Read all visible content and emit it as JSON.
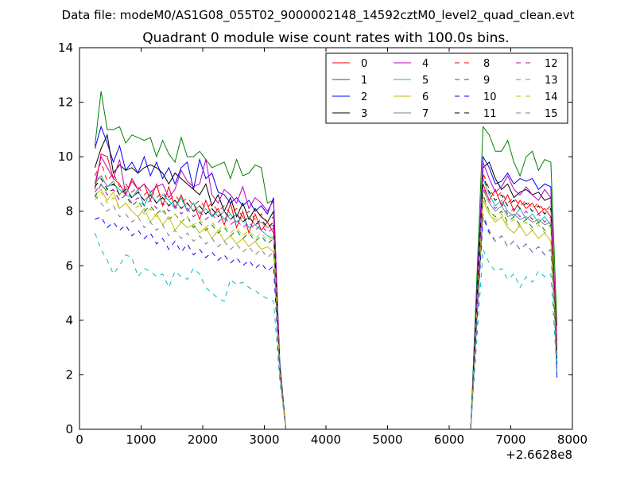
{
  "suptitle": "Data file: modeM0/AS1G08_055T02_9000002148_14592cztM0_level2_quad_clean.evt",
  "chart_data": {
    "type": "line",
    "title": "Quadrant 0 module wise count rates with 100.0s bins.",
    "xlabel": "",
    "ylabel": "",
    "x_offset_label": "+2.6628e8",
    "xlim": [
      0,
      8000
    ],
    "ylim": [
      0,
      14
    ],
    "xticks": [
      0,
      1000,
      2000,
      3000,
      4000,
      5000,
      6000,
      7000,
      8000
    ],
    "yticks": [
      0,
      2,
      4,
      6,
      8,
      10,
      12,
      14
    ],
    "grid": false,
    "legend": "top-right",
    "legend_columns": 4,
    "segments": [
      {
        "x_start": 250,
        "x_step": 100,
        "count": 30
      },
      {
        "x": [
          3250,
          3350,
          3450,
          6250,
          6350
        ]
      },
      {
        "x_start": 6550,
        "x_step": 100,
        "count": 13
      }
    ],
    "series": [
      {
        "name": "0",
        "color": "#ff0000",
        "dash": "solid",
        "seg1": [
          8.8,
          10.1,
          10.0,
          9.2,
          9.0,
          8.6,
          9.2,
          8.8,
          9.0,
          8.4,
          9.0,
          8.2,
          8.9,
          8.1,
          8.6,
          8.0,
          8.3,
          7.7,
          8.4,
          7.8,
          8.1,
          7.5,
          8.3,
          7.4,
          8.0,
          7.2,
          7.9,
          7.3,
          7.6,
          7.2
        ],
        "seg2": [
          2.2,
          0,
          0,
          0,
          0
        ],
        "seg3": [
          9.0,
          8.4,
          8.8,
          8.2,
          8.6,
          8.0,
          8.4,
          8.1,
          8.3,
          7.9,
          8.1,
          7.8,
          3.0
        ]
      },
      {
        "name": "1",
        "color": "#008000",
        "dash": "solid",
        "seg1": [
          10.4,
          12.4,
          11.0,
          11.0,
          11.1,
          10.5,
          10.8,
          10.7,
          10.6,
          10.7,
          10.0,
          10.6,
          10.1,
          9.8,
          10.7,
          10.0,
          10.0,
          10.2,
          9.9,
          9.6,
          9.7,
          9.8,
          9.2,
          9.9,
          9.3,
          9.4,
          9.7,
          9.6,
          8.3,
          8.4
        ],
        "seg2": [
          2.5,
          0,
          0,
          0,
          0
        ],
        "seg3": [
          11.1,
          10.8,
          10.2,
          10.2,
          10.6,
          9.8,
          9.3,
          10.0,
          10.2,
          9.5,
          9.9,
          9.8,
          3.8
        ]
      },
      {
        "name": "2",
        "color": "#0000ff",
        "dash": "solid",
        "seg1": [
          10.3,
          11.1,
          10.5,
          9.8,
          10.4,
          9.5,
          9.8,
          9.4,
          10.0,
          9.3,
          9.8,
          9.2,
          9.6,
          9.0,
          9.6,
          9.8,
          8.8,
          9.9,
          9.2,
          9.4,
          8.7,
          8.6,
          8.3,
          8.5,
          8.2,
          8.4,
          8.0,
          8.2,
          7.9,
          8.5
        ],
        "seg2": [
          2.3,
          0,
          0,
          0,
          0
        ],
        "seg3": [
          10.0,
          9.6,
          9.0,
          9.1,
          9.4,
          9.0,
          9.2,
          9.1,
          9.2,
          8.8,
          9.0,
          8.9,
          1.9
        ]
      },
      {
        "name": "3",
        "color": "#000000",
        "dash": "solid",
        "seg1": [
          9.6,
          10.3,
          10.8,
          9.4,
          9.7,
          9.5,
          9.6,
          9.4,
          9.6,
          9.7,
          9.6,
          9.4,
          9.0,
          9.4,
          9.2,
          9.0,
          8.8,
          8.6,
          9.0,
          8.2,
          8.6,
          8.0,
          8.5,
          7.8,
          8.3,
          7.7,
          8.1,
          7.8,
          7.6,
          8.0
        ],
        "seg2": [
          2.3,
          0,
          0,
          0,
          0
        ],
        "seg3": [
          9.6,
          9.8,
          9.2,
          8.8,
          9.0,
          8.5,
          8.7,
          8.8,
          8.6,
          8.7,
          8.4,
          8.5,
          2.8
        ]
      },
      {
        "name": "4",
        "color": "#bf00bf",
        "dash": "solid",
        "seg1": [
          9.0,
          10.0,
          9.6,
          9.2,
          9.9,
          8.6,
          9.1,
          8.8,
          9.0,
          8.7,
          8.9,
          9.0,
          8.5,
          8.8,
          9.5,
          9.1,
          8.9,
          9.0,
          9.9,
          8.6,
          8.3,
          8.8,
          8.6,
          8.3,
          8.9,
          8.1,
          8.5,
          8.3,
          8.0,
          8.4
        ],
        "seg2": [
          2.4,
          0,
          0,
          0,
          0
        ],
        "seg3": [
          9.8,
          9.2,
          8.7,
          8.9,
          9.3,
          8.8,
          8.6,
          8.9,
          8.6,
          8.4,
          8.8,
          8.5,
          3.2
        ]
      },
      {
        "name": "5",
        "color": "#00bfbf",
        "dash": "solid",
        "seg1": [
          9.1,
          9.3,
          8.9,
          9.0,
          8.8,
          8.6,
          8.5,
          8.8,
          8.2,
          8.7,
          8.3,
          8.6,
          8.4,
          8.1,
          8.5,
          8.0,
          8.3,
          7.9,
          8.1,
          7.8,
          8.0,
          7.7,
          7.9,
          7.6,
          7.8,
          7.4,
          7.5,
          7.3,
          7.1,
          7.0
        ],
        "seg2": [
          2.2,
          0,
          0,
          0,
          0
        ],
        "seg3": [
          9.2,
          8.6,
          8.2,
          8.4,
          8.0,
          7.8,
          8.1,
          7.7,
          7.9,
          7.6,
          7.8,
          7.5,
          2.5
        ]
      },
      {
        "name": "6",
        "color": "#bfbf00",
        "dash": "solid",
        "seg1": [
          8.6,
          8.8,
          8.4,
          8.7,
          8.1,
          8.3,
          8.0,
          7.8,
          8.1,
          7.6,
          7.9,
          7.5,
          7.8,
          7.3,
          7.6,
          7.4,
          7.5,
          7.2,
          7.4,
          7.0,
          7.3,
          6.9,
          7.1,
          6.8,
          7.0,
          6.7,
          6.9,
          6.6,
          6.7,
          6.5
        ],
        "seg2": [
          2.1,
          0,
          0,
          0,
          0
        ],
        "seg3": [
          8.4,
          7.9,
          7.6,
          7.8,
          7.4,
          7.2,
          7.5,
          7.1,
          7.3,
          7.0,
          7.2,
          6.9,
          2.6
        ]
      },
      {
        "name": "7",
        "color": "#808080",
        "dash": "solid",
        "seg1": [
          9.0,
          9.3,
          8.9,
          9.1,
          8.6,
          8.9,
          8.5,
          8.7,
          8.4,
          8.6,
          8.3,
          8.5,
          8.2,
          8.4,
          8.1,
          8.3,
          8.0,
          8.2,
          7.9,
          8.1,
          7.8,
          8.0,
          7.7,
          7.9,
          7.6,
          7.8,
          7.5,
          7.6,
          7.4,
          7.5
        ],
        "seg2": [
          2.2,
          0,
          0,
          0,
          0
        ],
        "seg3": [
          8.8,
          8.3,
          8.0,
          8.2,
          7.8,
          7.9,
          7.7,
          7.8,
          7.6,
          7.7,
          7.5,
          7.6,
          2.7
        ]
      },
      {
        "name": "8",
        "color": "#ff0000",
        "dash": "dashed",
        "seg1": [
          9.3,
          9.8,
          9.1,
          9.4,
          8.9,
          9.0,
          8.7,
          8.9,
          8.6,
          8.8,
          8.5,
          8.7,
          8.4,
          8.6,
          8.3,
          8.5,
          8.2,
          8.4,
          8.1,
          8.3,
          8.0,
          8.2,
          7.9,
          8.1,
          7.8,
          8.0,
          7.7,
          7.9,
          7.6,
          7.8
        ],
        "seg2": [
          2.3,
          0,
          0,
          0,
          0
        ],
        "seg3": [
          9.4,
          8.8,
          8.5,
          8.7,
          8.3,
          8.5,
          8.2,
          8.4,
          8.1,
          8.3,
          8.0,
          8.2,
          2.9
        ]
      },
      {
        "name": "9",
        "color": "#008000",
        "dash": "dashed",
        "seg1": [
          8.5,
          9.0,
          8.7,
          8.8,
          8.4,
          8.6,
          8.2,
          8.4,
          8.0,
          8.2,
          7.9,
          8.1,
          7.7,
          7.9,
          7.6,
          7.8,
          7.4,
          7.6,
          7.3,
          7.5,
          7.2,
          7.4,
          7.1,
          7.3,
          7.0,
          7.2,
          6.9,
          7.1,
          6.8,
          7.0
        ],
        "seg2": [
          2.2,
          0,
          0,
          0,
          0
        ],
        "seg3": [
          8.6,
          8.0,
          7.8,
          8.0,
          7.6,
          7.8,
          7.5,
          7.7,
          7.4,
          7.6,
          7.3,
          7.5,
          2.6
        ]
      },
      {
        "name": "10",
        "color": "#0000ff",
        "dash": "dashed",
        "seg1": [
          7.7,
          7.8,
          7.4,
          7.6,
          7.3,
          7.5,
          7.1,
          7.3,
          7.0,
          7.2,
          6.8,
          7.0,
          6.6,
          6.9,
          6.5,
          6.8,
          6.4,
          6.6,
          6.3,
          6.5,
          6.2,
          6.4,
          6.1,
          6.3,
          6.0,
          6.2,
          5.9,
          6.1,
          5.8,
          6.0
        ],
        "seg2": [
          2.0,
          0,
          0,
          0,
          0
        ],
        "seg3": [
          7.8,
          7.2,
          6.9,
          7.1,
          6.7,
          6.9,
          6.6,
          6.8,
          6.5,
          6.7,
          6.4,
          6.6,
          2.4
        ]
      },
      {
        "name": "11",
        "color": "#000000",
        "dash": "dashed",
        "seg1": [
          8.9,
          9.2,
          8.8,
          9.0,
          8.6,
          8.8,
          8.5,
          8.7,
          8.4,
          8.6,
          8.3,
          8.5,
          8.2,
          8.4,
          8.1,
          8.3,
          8.0,
          8.2,
          7.9,
          8.1,
          7.8,
          8.0,
          7.7,
          7.9,
          7.6,
          7.8,
          7.5,
          7.7,
          7.4,
          7.6
        ],
        "seg2": [
          2.3,
          0,
          0,
          0,
          0
        ],
        "seg3": [
          9.3,
          8.7,
          8.4,
          8.6,
          8.2,
          8.4,
          8.1,
          8.3,
          8.0,
          8.2,
          7.9,
          8.1,
          2.8
        ]
      },
      {
        "name": "12",
        "color": "#bf00bf",
        "dash": "dashed",
        "seg1": [
          8.7,
          9.0,
          8.6,
          8.8,
          8.4,
          8.6,
          8.3,
          8.5,
          8.2,
          8.4,
          8.1,
          8.3,
          8.0,
          8.2,
          7.9,
          8.1,
          7.8,
          8.0,
          7.7,
          7.9,
          7.6,
          7.8,
          7.5,
          7.7,
          7.4,
          7.6,
          7.3,
          7.5,
          7.2,
          7.4
        ],
        "seg2": [
          2.2,
          0,
          0,
          0,
          0
        ],
        "seg3": [
          8.9,
          8.4,
          8.1,
          8.3,
          7.9,
          8.1,
          7.8,
          8.0,
          7.7,
          7.9,
          7.6,
          7.8,
          2.7
        ]
      },
      {
        "name": "13",
        "color": "#00bfbf",
        "dash": "dashed",
        "seg1": [
          7.2,
          6.6,
          6.2,
          5.7,
          6.0,
          6.4,
          6.3,
          5.6,
          5.9,
          5.8,
          5.6,
          5.7,
          5.2,
          5.8,
          5.6,
          5.5,
          5.9,
          5.7,
          5.2,
          5.0,
          4.8,
          4.7,
          5.5,
          5.3,
          5.4,
          5.2,
          5.1,
          4.9,
          4.8,
          4.7
        ],
        "seg2": [
          1.8,
          0,
          0,
          0,
          0
        ],
        "seg3": [
          6.6,
          6.1,
          5.8,
          5.9,
          5.5,
          5.7,
          5.2,
          5.6,
          5.4,
          5.8,
          5.6,
          5.7,
          2.1
        ]
      },
      {
        "name": "14",
        "color": "#bfbf00",
        "dash": "dashed",
        "seg1": [
          8.4,
          8.7,
          8.3,
          8.5,
          8.1,
          8.3,
          8.0,
          8.2,
          7.9,
          8.1,
          7.8,
          8.0,
          7.7,
          7.9,
          7.6,
          7.8,
          7.5,
          7.7,
          7.4,
          7.6,
          7.3,
          7.5,
          7.2,
          7.4,
          7.1,
          7.3,
          7.0,
          7.2,
          6.9,
          7.1
        ],
        "seg2": [
          2.1,
          0,
          0,
          0,
          0
        ],
        "seg3": [
          8.5,
          8.0,
          7.7,
          7.9,
          7.5,
          7.7,
          7.4,
          7.6,
          7.3,
          7.5,
          7.2,
          7.4,
          2.6
        ]
      },
      {
        "name": "15",
        "color": "#808080",
        "dash": "dashed",
        "seg1": [
          8.6,
          8.3,
          8.0,
          8.2,
          7.8,
          7.9,
          7.6,
          7.8,
          7.4,
          7.6,
          7.3,
          7.5,
          7.1,
          7.3,
          7.0,
          7.2,
          6.9,
          7.1,
          6.8,
          7.0,
          6.7,
          6.9,
          6.6,
          6.8,
          6.5,
          6.7,
          6.4,
          6.6,
          6.3,
          6.5
        ],
        "seg2": [
          2.1,
          0,
          0,
          0,
          0
        ],
        "seg3": [
          7.9,
          7.3,
          6.9,
          7.1,
          6.7,
          6.9,
          6.6,
          6.8,
          6.5,
          6.7,
          6.4,
          6.6,
          2.5
        ]
      }
    ]
  }
}
